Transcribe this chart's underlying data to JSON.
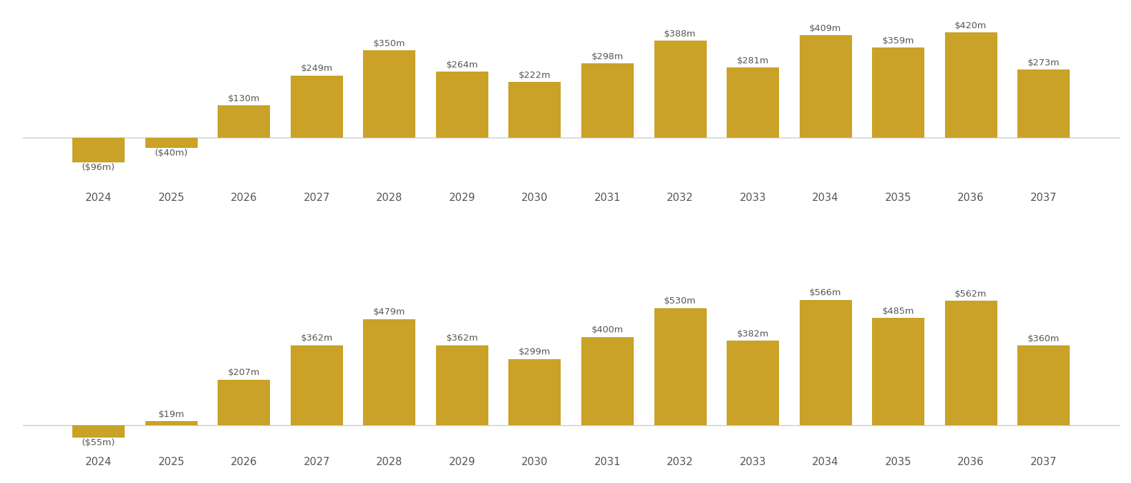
{
  "years": [
    2024,
    2025,
    2026,
    2027,
    2028,
    2029,
    2030,
    2031,
    2032,
    2033,
    2034,
    2035,
    2036,
    2037
  ],
  "chart1_values": [
    -96,
    -40,
    130,
    249,
    350,
    264,
    222,
    298,
    388,
    281,
    409,
    359,
    420,
    273
  ],
  "chart2_values": [
    -55,
    19,
    207,
    362,
    479,
    362,
    299,
    400,
    530,
    382,
    566,
    485,
    562,
    360
  ],
  "bar_color": "#C9A227",
  "background_color": "#FFFFFF",
  "label_color": "#555555",
  "axis_line_color": "#CCCCCC",
  "figsize": [
    16.42,
    7.02
  ],
  "dpi": 100,
  "label_fontsize": 9.5,
  "tick_fontsize": 11.0,
  "bar_width": 0.72
}
